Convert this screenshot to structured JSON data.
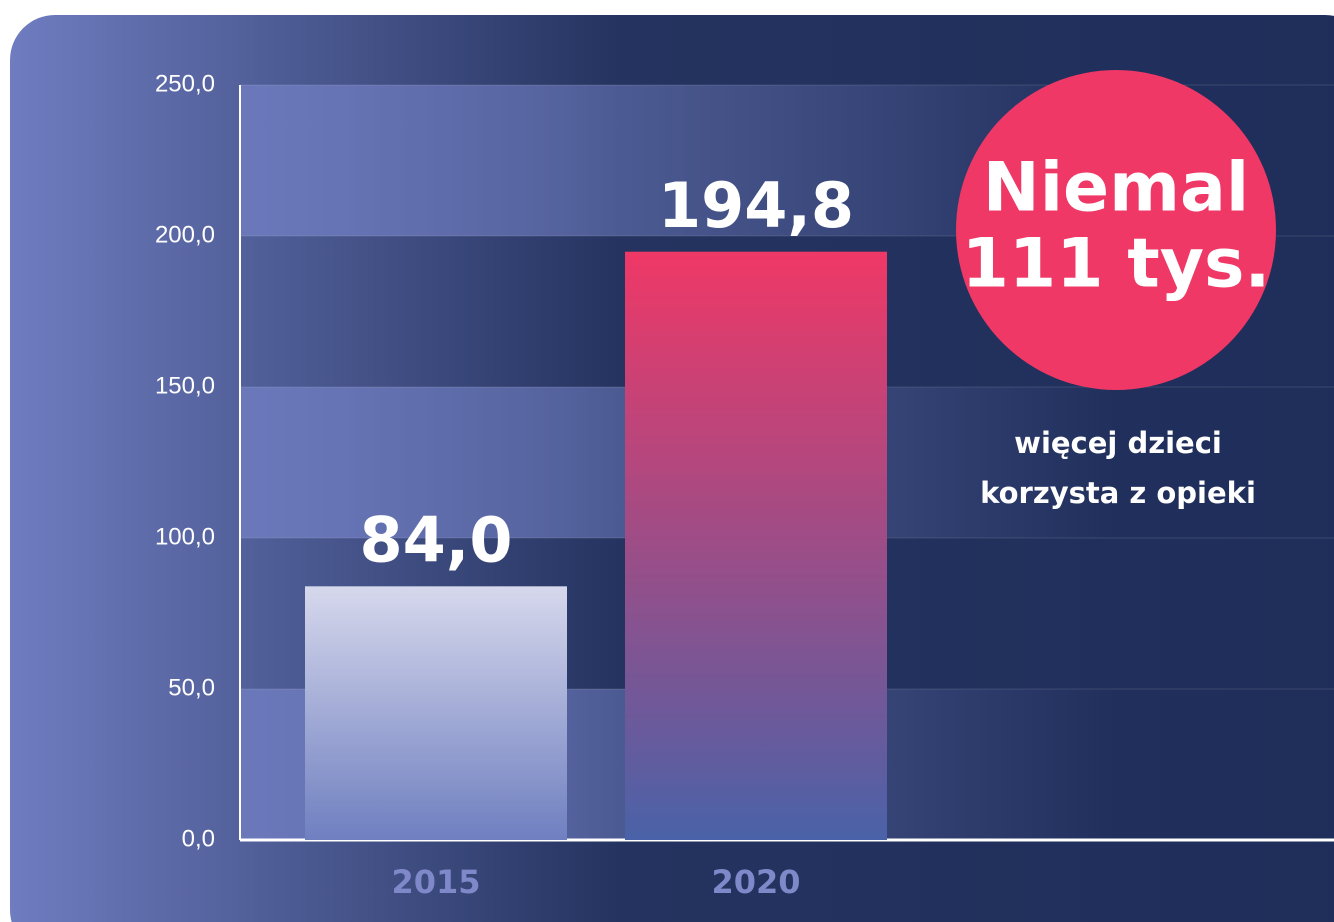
{
  "chart_data": {
    "type": "bar",
    "categories": [
      "2015",
      "2020"
    ],
    "values": [
      84.0,
      194.8
    ],
    "value_labels": [
      "84,0",
      "194,8"
    ],
    "colors": [
      "#d6d8ec",
      "#ef3866"
    ],
    "ylim": [
      0,
      250
    ],
    "yticks": [
      {
        "value": 0,
        "label": "0,0"
      },
      {
        "value": 50,
        "label": "50,0"
      },
      {
        "value": 100,
        "label": "100,0"
      },
      {
        "value": 150,
        "label": "150,0"
      },
      {
        "value": 200,
        "label": "200,0"
      },
      {
        "value": 250,
        "label": "250,0"
      }
    ],
    "grid": true,
    "annotation": {
      "highlight": [
        "Niemal",
        "111 tys."
      ],
      "text": [
        "więcej dzieci",
        "korzysta z opieki"
      ]
    }
  }
}
